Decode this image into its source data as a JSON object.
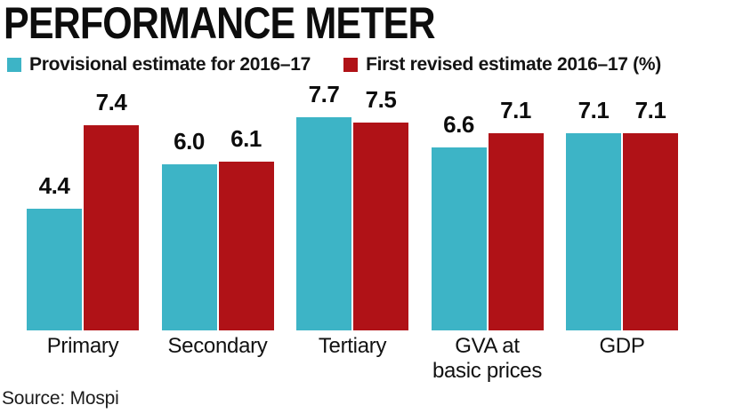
{
  "title": "PERFORMANCE METER",
  "source_note": "Source: Mospi",
  "colors": {
    "provisional": "#3db4c6",
    "revised": "#b01217",
    "text": "#0d0d0d",
    "background": "#ffffff"
  },
  "chart_data": {
    "type": "bar",
    "title": "PERFORMANCE METER",
    "categories": [
      "Primary",
      "Secondary",
      "Tertiary",
      "GVA at\nbasic prices",
      "GDP"
    ],
    "series": [
      {
        "name": "Provisional estimate for 2016–17",
        "color": "#3db4c6",
        "values": [
          4.4,
          6.0,
          7.7,
          6.6,
          7.1
        ]
      },
      {
        "name": "First revised estimate 2016–17 (%)",
        "color": "#b01217",
        "values": [
          7.4,
          6.1,
          7.5,
          7.1,
          7.1
        ]
      }
    ],
    "unit": "%",
    "value_labels": true,
    "ylim": [
      0,
      8
    ],
    "grid": false,
    "axes_shown": false,
    "legend_position": "top",
    "source": "Source: Mospi"
  }
}
